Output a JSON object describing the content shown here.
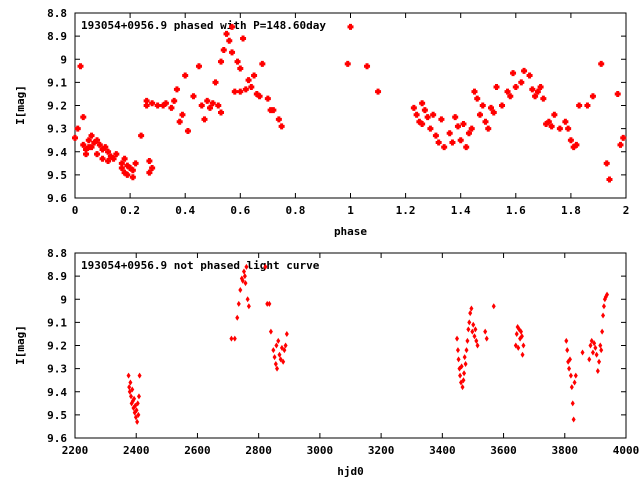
{
  "colors": {
    "points": "#ff0000",
    "axes": "#000000",
    "background": "#ffffff"
  },
  "chart_data": [
    {
      "type": "scatter",
      "title": "193054+0956.9 phased with P=148.60day",
      "xlabel": "phase",
      "ylabel": "I[mag]",
      "xlim": [
        0,
        2
      ],
      "ylim": [
        8.8,
        9.6
      ],
      "y_inverted": true,
      "grid": false,
      "marker": "filled square/star",
      "x_ticks": [
        "0",
        "0.2",
        "0.4",
        "0.6",
        "0.8",
        "1",
        "1.2",
        "1.4",
        "1.6",
        "1.8",
        "2"
      ],
      "y_ticks": [
        "8.8",
        "8.9",
        "9",
        "9.1",
        "9.2",
        "9.3",
        "9.4",
        "9.5",
        "9.6"
      ],
      "series": [
        {
          "points": [
            [
              0.0,
              9.34
            ],
            [
              0.01,
              9.3
            ],
            [
              0.02,
              9.03
            ],
            [
              0.03,
              9.37
            ],
            [
              0.03,
              9.25
            ],
            [
              0.04,
              9.39
            ],
            [
              0.04,
              9.41
            ],
            [
              0.05,
              9.35
            ],
            [
              0.05,
              9.38
            ],
            [
              0.06,
              9.38
            ],
            [
              0.06,
              9.33
            ],
            [
              0.07,
              9.36
            ],
            [
              0.08,
              9.35
            ],
            [
              0.08,
              9.41
            ],
            [
              0.09,
              9.37
            ],
            [
              0.1,
              9.43
            ],
            [
              0.1,
              9.39
            ],
            [
              0.11,
              9.38
            ],
            [
              0.12,
              9.4
            ],
            [
              0.12,
              9.44
            ],
            [
              0.13,
              9.42
            ],
            [
              0.14,
              9.43
            ],
            [
              0.15,
              9.41
            ],
            [
              0.17,
              9.45
            ],
            [
              0.17,
              9.47
            ],
            [
              0.18,
              9.43
            ],
            [
              0.18,
              9.49
            ],
            [
              0.19,
              9.5
            ],
            [
              0.19,
              9.46
            ],
            [
              0.2,
              9.47
            ],
            [
              0.21,
              9.51
            ],
            [
              0.21,
              9.48
            ],
            [
              0.22,
              9.45
            ],
            [
              0.24,
              9.33
            ],
            [
              0.26,
              9.2
            ],
            [
              0.26,
              9.18
            ],
            [
              0.27,
              9.44
            ],
            [
              0.27,
              9.49
            ],
            [
              0.28,
              9.47
            ],
            [
              0.28,
              9.19
            ],
            [
              0.3,
              9.2
            ],
            [
              0.32,
              9.2
            ],
            [
              0.33,
              9.19
            ],
            [
              0.35,
              9.21
            ],
            [
              0.36,
              9.18
            ],
            [
              0.37,
              9.13
            ],
            [
              0.38,
              9.27
            ],
            [
              0.39,
              9.24
            ],
            [
              0.4,
              9.07
            ],
            [
              0.41,
              9.31
            ],
            [
              0.43,
              9.16
            ],
            [
              0.45,
              9.03
            ],
            [
              0.46,
              9.2
            ],
            [
              0.47,
              9.26
            ],
            [
              0.48,
              9.18
            ],
            [
              0.49,
              9.21
            ],
            [
              0.5,
              9.19
            ],
            [
              0.51,
              9.1
            ],
            [
              0.52,
              9.2
            ],
            [
              0.53,
              9.23
            ],
            [
              0.53,
              9.01
            ],
            [
              0.54,
              8.96
            ],
            [
              0.55,
              8.89
            ],
            [
              0.56,
              8.92
            ],
            [
              0.57,
              8.86
            ],
            [
              0.57,
              8.97
            ],
            [
              0.58,
              9.14
            ],
            [
              0.59,
              9.01
            ],
            [
              0.6,
              9.04
            ],
            [
              0.6,
              9.14
            ],
            [
              0.61,
              8.91
            ],
            [
              0.62,
              9.13
            ],
            [
              0.63,
              9.09
            ],
            [
              0.64,
              9.12
            ],
            [
              0.65,
              9.07
            ],
            [
              0.66,
              9.15
            ],
            [
              0.67,
              9.16
            ],
            [
              0.68,
              9.02
            ],
            [
              0.7,
              9.17
            ],
            [
              0.71,
              9.22
            ],
            [
              0.72,
              9.22
            ],
            [
              0.74,
              9.26
            ],
            [
              0.75,
              9.29
            ],
            [
              0.99,
              9.02
            ],
            [
              1.0,
              8.86
            ],
            [
              1.06,
              9.03
            ],
            [
              1.1,
              9.14
            ],
            [
              1.23,
              9.21
            ],
            [
              1.24,
              9.24
            ],
            [
              1.25,
              9.27
            ],
            [
              1.26,
              9.19
            ],
            [
              1.26,
              9.28
            ],
            [
              1.27,
              9.22
            ],
            [
              1.28,
              9.25
            ],
            [
              1.29,
              9.3
            ],
            [
              1.3,
              9.24
            ],
            [
              1.31,
              9.33
            ],
            [
              1.32,
              9.36
            ],
            [
              1.33,
              9.26
            ],
            [
              1.34,
              9.38
            ],
            [
              1.36,
              9.32
            ],
            [
              1.37,
              9.36
            ],
            [
              1.38,
              9.25
            ],
            [
              1.39,
              9.29
            ],
            [
              1.4,
              9.35
            ],
            [
              1.41,
              9.28
            ],
            [
              1.42,
              9.38
            ],
            [
              1.43,
              9.32
            ],
            [
              1.44,
              9.3
            ],
            [
              1.45,
              9.14
            ],
            [
              1.46,
              9.17
            ],
            [
              1.47,
              9.24
            ],
            [
              1.48,
              9.2
            ],
            [
              1.49,
              9.27
            ],
            [
              1.5,
              9.3
            ],
            [
              1.51,
              9.21
            ],
            [
              1.52,
              9.23
            ],
            [
              1.53,
              9.12
            ],
            [
              1.55,
              9.2
            ],
            [
              1.57,
              9.14
            ],
            [
              1.58,
              9.16
            ],
            [
              1.59,
              9.06
            ],
            [
              1.6,
              9.12
            ],
            [
              1.62,
              9.1
            ],
            [
              1.63,
              9.05
            ],
            [
              1.65,
              9.07
            ],
            [
              1.66,
              9.13
            ],
            [
              1.67,
              9.16
            ],
            [
              1.68,
              9.14
            ],
            [
              1.69,
              9.12
            ],
            [
              1.7,
              9.17
            ],
            [
              1.71,
              9.28
            ],
            [
              1.72,
              9.27
            ],
            [
              1.73,
              9.29
            ],
            [
              1.74,
              9.24
            ],
            [
              1.76,
              9.3
            ],
            [
              1.78,
              9.27
            ],
            [
              1.79,
              9.3
            ],
            [
              1.8,
              9.35
            ],
            [
              1.81,
              9.38
            ],
            [
              1.82,
              9.37
            ],
            [
              1.83,
              9.2
            ],
            [
              1.86,
              9.2
            ],
            [
              1.88,
              9.16
            ],
            [
              1.91,
              9.02
            ],
            [
              1.93,
              9.45
            ],
            [
              1.94,
              9.52
            ],
            [
              1.97,
              9.15
            ],
            [
              1.98,
              9.37
            ],
            [
              1.99,
              9.34
            ]
          ]
        }
      ]
    },
    {
      "type": "scatter",
      "title": "193054+0956.9 not phased light curve",
      "xlabel": "hjd0",
      "ylabel": "I[mag]",
      "xlim": [
        2200,
        4000
      ],
      "ylim": [
        8.8,
        9.6
      ],
      "y_inverted": true,
      "grid": false,
      "marker": "filled diamond",
      "x_ticks": [
        "2200",
        "2400",
        "2600",
        "2800",
        "3000",
        "3200",
        "3400",
        "3600",
        "3800",
        "4000"
      ],
      "y_ticks": [
        "8.8",
        "8.9",
        "9",
        "9.1",
        "9.2",
        "9.3",
        "9.4",
        "9.5",
        "9.6"
      ],
      "series": [
        {
          "points": [
            [
              2375,
              9.33
            ],
            [
              2377,
              9.38
            ],
            [
              2379,
              9.4
            ],
            [
              2381,
              9.36
            ],
            [
              2383,
              9.42
            ],
            [
              2385,
              9.45
            ],
            [
              2387,
              9.39
            ],
            [
              2389,
              9.44
            ],
            [
              2391,
              9.47
            ],
            [
              2393,
              9.43
            ],
            [
              2395,
              9.49
            ],
            [
              2397,
              9.46
            ],
            [
              2399,
              9.51
            ],
            [
              2401,
              9.48
            ],
            [
              2403,
              9.53
            ],
            [
              2405,
              9.45
            ],
            [
              2407,
              9.5
            ],
            [
              2409,
              9.42
            ],
            [
              2411,
              9.33
            ],
            [
              2711,
              9.17
            ],
            [
              2722,
              9.17
            ],
            [
              2730,
              9.08
            ],
            [
              2735,
              9.02
            ],
            [
              2740,
              8.96
            ],
            [
              2745,
              8.91
            ],
            [
              2748,
              8.92
            ],
            [
              2752,
              8.88
            ],
            [
              2755,
              8.9
            ],
            [
              2757,
              8.93
            ],
            [
              2760,
              8.86
            ],
            [
              2764,
              9.0
            ],
            [
              2768,
              9.03
            ],
            [
              2822,
              8.86
            ],
            [
              2828,
              9.02
            ],
            [
              2835,
              9.02
            ],
            [
              2840,
              9.14
            ],
            [
              2848,
              9.22
            ],
            [
              2852,
              9.25
            ],
            [
              2856,
              9.28
            ],
            [
              2858,
              9.2
            ],
            [
              2860,
              9.3
            ],
            [
              2864,
              9.18
            ],
            [
              2868,
              9.24
            ],
            [
              2872,
              9.26
            ],
            [
              2876,
              9.21
            ],
            [
              2880,
              9.27
            ],
            [
              2884,
              9.22
            ],
            [
              2888,
              9.2
            ],
            [
              2892,
              9.15
            ],
            [
              3448,
              9.17
            ],
            [
              3451,
              9.22
            ],
            [
              3453,
              9.26
            ],
            [
              3456,
              9.3
            ],
            [
              3458,
              9.33
            ],
            [
              3461,
              9.36
            ],
            [
              3463,
              9.29
            ],
            [
              3466,
              9.38
            ],
            [
              3469,
              9.35
            ],
            [
              3471,
              9.32
            ],
            [
              3473,
              9.25
            ],
            [
              3476,
              9.28
            ],
            [
              3479,
              9.22
            ],
            [
              3482,
              9.18
            ],
            [
              3485,
              9.13
            ],
            [
              3488,
              9.1
            ],
            [
              3491,
              9.06
            ],
            [
              3495,
              9.04
            ],
            [
              3498,
              9.14
            ],
            [
              3501,
              9.11
            ],
            [
              3505,
              9.16
            ],
            [
              3508,
              9.13
            ],
            [
              3511,
              9.18
            ],
            [
              3515,
              9.2
            ],
            [
              3540,
              9.14
            ],
            [
              3545,
              9.17
            ],
            [
              3568,
              9.03
            ],
            [
              3640,
              9.2
            ],
            [
              3643,
              9.15
            ],
            [
              3646,
              9.12
            ],
            [
              3648,
              9.21
            ],
            [
              3651,
              9.13
            ],
            [
              3654,
              9.17
            ],
            [
              3657,
              9.14
            ],
            [
              3660,
              9.16
            ],
            [
              3662,
              9.24
            ],
            [
              3665,
              9.2
            ],
            [
              3805,
              9.18
            ],
            [
              3808,
              9.22
            ],
            [
              3811,
              9.27
            ],
            [
              3814,
              9.3
            ],
            [
              3817,
              9.26
            ],
            [
              3820,
              9.33
            ],
            [
              3823,
              9.38
            ],
            [
              3826,
              9.45
            ],
            [
              3829,
              9.52
            ],
            [
              3832,
              9.36
            ],
            [
              3836,
              9.33
            ],
            [
              3858,
              9.23
            ],
            [
              3880,
              9.26
            ],
            [
              3884,
              9.2
            ],
            [
              3888,
              9.18
            ],
            [
              3892,
              9.23
            ],
            [
              3896,
              9.19
            ],
            [
              3900,
              9.21
            ],
            [
              3904,
              9.24
            ],
            [
              3908,
              9.31
            ],
            [
              3912,
              9.27
            ],
            [
              3916,
              9.2
            ],
            [
              3919,
              9.22
            ],
            [
              3922,
              9.14
            ],
            [
              3925,
              9.07
            ],
            [
              3928,
              9.03
            ],
            [
              3931,
              9.0
            ],
            [
              3934,
              8.99
            ],
            [
              3938,
              8.98
            ]
          ]
        }
      ]
    }
  ]
}
